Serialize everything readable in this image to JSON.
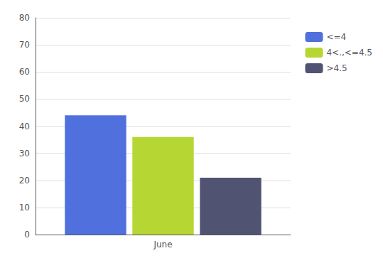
{
  "chart_data": {
    "type": "bar",
    "categories": [
      "June"
    ],
    "series": [
      {
        "name": "<=4",
        "values": [
          44
        ]
      },
      {
        "name": "4<.,<=4.5",
        "values": [
          36
        ]
      },
      {
        "name": ">4.5",
        "values": [
          21
        ]
      }
    ],
    "ylim": [
      0,
      80
    ],
    "yticks": [
      0,
      10,
      20,
      30,
      40,
      50,
      60,
      70,
      80
    ],
    "grid": true,
    "legend": "right"
  }
}
